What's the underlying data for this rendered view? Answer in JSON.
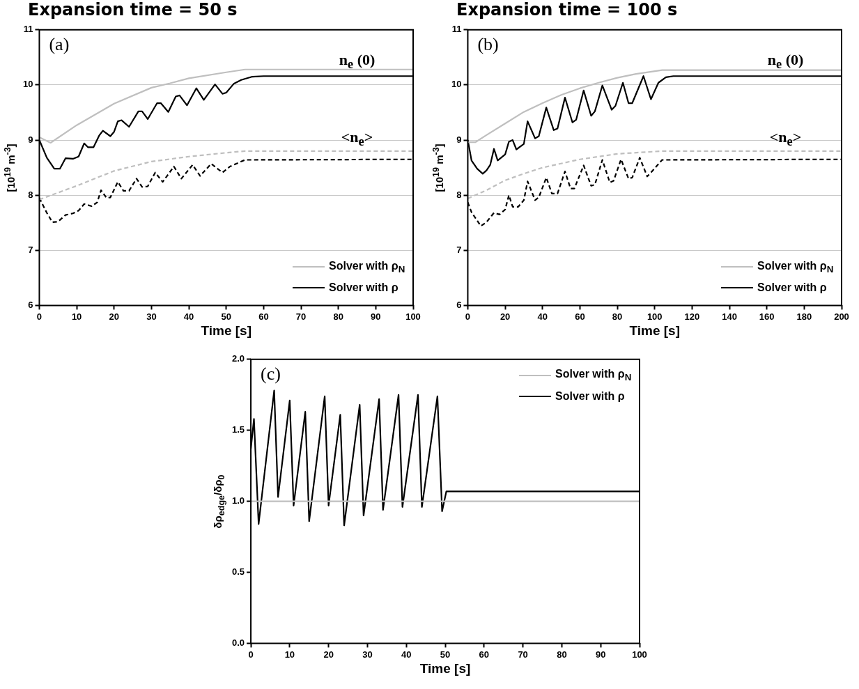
{
  "chart_data": [
    {
      "type": "line",
      "title": "Expansion time = 50 s",
      "xlabel": "Time [s]",
      "ylabel": "[10$^{19}$ m$^{-3}$]",
      "xlim": [
        0,
        100
      ],
      "ylim": [
        6,
        11
      ],
      "xticks": [
        0,
        10,
        20,
        30,
        40,
        50,
        60,
        70,
        80,
        90,
        100
      ],
      "yticks": [
        6,
        7,
        8,
        9,
        10,
        11
      ],
      "grid": "y",
      "legend": "bottom right",
      "marker": "none",
      "line_style": "solid",
      "annotations": [
        "(a)",
        "n$_{e}$ (0)",
        "<n$_{e}$>"
      ],
      "series": [
        {
          "name": "Solver with ρ$_{N}$",
          "color": "#bfbfbf",
          "x": [
            0,
            3,
            10,
            20,
            30,
            35,
            40,
            50,
            55,
            100
          ],
          "values": [
            9.05,
            8.95,
            9.27,
            9.66,
            9.95,
            10.03,
            10.12,
            10.23,
            10.28,
            10.28
          ]
        },
        {
          "name": "Solver with ρ",
          "color": "#000000",
          "x": [
            0,
            2,
            4,
            5.5,
            7,
            9,
            10.5,
            12,
            13,
            14.5,
            16,
            17,
            19,
            20,
            21,
            22,
            24,
            26.5,
            27.5,
            29,
            31.5,
            32.5,
            34.5,
            36.5,
            37.5,
            39.5,
            42,
            44,
            47,
            49,
            50,
            52,
            54,
            57,
            60,
            100
          ],
          "values": [
            9.0,
            8.68,
            8.48,
            8.48,
            8.67,
            8.66,
            8.7,
            8.94,
            8.87,
            8.87,
            9.08,
            9.17,
            9.07,
            9.15,
            9.34,
            9.36,
            9.24,
            9.52,
            9.52,
            9.38,
            9.67,
            9.67,
            9.51,
            9.79,
            9.81,
            9.63,
            9.94,
            9.73,
            10.01,
            9.84,
            9.86,
            10.02,
            10.09,
            10.15,
            10.16,
            10.16
          ]
        },
        {
          "color": "#bfbfbf",
          "line_style": "dashed",
          "x": [
            0,
            10,
            20,
            30,
            40,
            50,
            55,
            100
          ],
          "values": [
            7.92,
            8.17,
            8.44,
            8.61,
            8.7,
            8.77,
            8.8,
            8.8
          ]
        },
        {
          "color": "#000000",
          "line_style": "dashed",
          "x": [
            0,
            2,
            3.5,
            5,
            7,
            9,
            10.5,
            12,
            14,
            15.5,
            16.5,
            18,
            19,
            21,
            22.5,
            24,
            26,
            27.5,
            29,
            31,
            33,
            36,
            38,
            41,
            43,
            46,
            49,
            51,
            55,
            100
          ],
          "values": [
            7.95,
            7.68,
            7.51,
            7.52,
            7.64,
            7.67,
            7.72,
            7.84,
            7.8,
            7.87,
            8.09,
            7.95,
            7.96,
            8.24,
            8.08,
            8.08,
            8.3,
            8.15,
            8.16,
            8.41,
            8.24,
            8.52,
            8.3,
            8.55,
            8.35,
            8.57,
            8.41,
            8.52,
            8.64,
            8.65
          ]
        }
      ]
    },
    {
      "type": "line",
      "title": "Expansion time = 100 s",
      "xlabel": "Time [s]",
      "ylabel": "[10$^{19}$ m$^{-3}$]",
      "xlim": [
        0,
        200
      ],
      "ylim": [
        6,
        11
      ],
      "xticks": [
        0,
        20,
        40,
        60,
        80,
        100,
        120,
        140,
        160,
        180,
        200
      ],
      "yticks": [
        6,
        7,
        8,
        9,
        10,
        11
      ],
      "grid": "y",
      "legend": "bottom right",
      "marker": "none",
      "line_style": "solid",
      "annotations": [
        "(b)",
        "n$_{e}$ (0)",
        "<n$_{e}$>"
      ],
      "series": [
        {
          "name": "Solver with ρ$_{N}$",
          "color": "#bfbfbf",
          "x": [
            0,
            4,
            10,
            20,
            30,
            40,
            50,
            60,
            70,
            80,
            90,
            104,
            200
          ],
          "values": [
            8.96,
            8.96,
            9.09,
            9.3,
            9.51,
            9.67,
            9.82,
            9.94,
            10.04,
            10.13,
            10.2,
            10.27,
            10.27
          ]
        },
        {
          "name": "Solver with ρ",
          "color": "#000000",
          "x": [
            0,
            2,
            5,
            8,
            10,
            12,
            14,
            16,
            20,
            22,
            24,
            26,
            30,
            32,
            36,
            38,
            42,
            46,
            48,
            52,
            56,
            58,
            62,
            66,
            68,
            72,
            77,
            79,
            83,
            86,
            88,
            94,
            98,
            102,
            106,
            110,
            200
          ],
          "values": [
            9.0,
            8.63,
            8.48,
            8.39,
            8.45,
            8.55,
            8.84,
            8.63,
            8.74,
            8.97,
            9.0,
            8.83,
            8.93,
            9.34,
            9.03,
            9.07,
            9.59,
            9.18,
            9.21,
            9.77,
            9.32,
            9.37,
            9.9,
            9.44,
            9.52,
            9.99,
            9.55,
            9.62,
            10.04,
            9.67,
            9.67,
            10.16,
            9.74,
            10.04,
            10.14,
            10.16,
            10.16
          ]
        },
        {
          "color": "#bfbfbf",
          "line_style": "dashed",
          "x": [
            0,
            10,
            20,
            30,
            40,
            60,
            80,
            104,
            200
          ],
          "values": [
            7.94,
            8.09,
            8.27,
            8.39,
            8.5,
            8.65,
            8.75,
            8.8,
            8.8
          ]
        },
        {
          "color": "#000000",
          "line_style": "dashed",
          "x": [
            0,
            2,
            7,
            10,
            14,
            17,
            20,
            22,
            24,
            27,
            30,
            32,
            36,
            38,
            42,
            45,
            48,
            52,
            55,
            57,
            62,
            66,
            68,
            72,
            76,
            78,
            82,
            86,
            88,
            92,
            96,
            98,
            104,
            200
          ],
          "values": [
            7.87,
            7.69,
            7.44,
            7.51,
            7.68,
            7.65,
            7.74,
            8.0,
            7.79,
            7.79,
            7.91,
            8.25,
            7.91,
            7.96,
            8.32,
            8.03,
            8.03,
            8.43,
            8.12,
            8.12,
            8.54,
            8.17,
            8.19,
            8.64,
            8.23,
            8.26,
            8.65,
            8.3,
            8.32,
            8.68,
            8.34,
            8.41,
            8.64,
            8.65
          ]
        }
      ]
    },
    {
      "type": "line",
      "xlabel": "Time [s]",
      "ylabel": "δρ$_{edge}$/δρ$_{0}$",
      "xlim": [
        0,
        100
      ],
      "ylim": [
        0,
        2
      ],
      "xticks": [
        0,
        10,
        20,
        30,
        40,
        50,
        60,
        70,
        80,
        90,
        100
      ],
      "yticks": [
        {
          "value": 0,
          "label": "0.0"
        },
        {
          "value": 0.5,
          "label": "0.5"
        },
        {
          "value": 1,
          "label": "1.0"
        },
        {
          "value": 1.5,
          "label": "1.5"
        },
        {
          "value": 2,
          "label": "2.0"
        }
      ],
      "legend": "top right",
      "marker": "none",
      "line_style": "solid",
      "annotations": [
        "(c)"
      ],
      "series": [
        {
          "name": "Solver with ρ$_{N}$",
          "color": "#bfbfbf",
          "x": [
            0,
            100
          ],
          "values": [
            1.0,
            1.0
          ]
        },
        {
          "name": "Solver with ρ",
          "color": "#000000",
          "x": [
            0,
            0.8,
            2,
            6,
            7,
            10,
            11,
            14,
            15,
            19,
            20,
            23,
            24,
            28,
            29,
            33,
            34,
            38,
            39,
            43,
            44,
            48,
            49.2,
            50.3,
            100
          ],
          "values": [
            1.37,
            1.58,
            0.84,
            1.78,
            1.03,
            1.71,
            0.97,
            1.63,
            0.86,
            1.74,
            0.97,
            1.61,
            0.83,
            1.68,
            0.9,
            1.72,
            0.94,
            1.75,
            0.96,
            1.75,
            0.96,
            1.74,
            0.93,
            1.07,
            1.07
          ]
        }
      ]
    }
  ]
}
